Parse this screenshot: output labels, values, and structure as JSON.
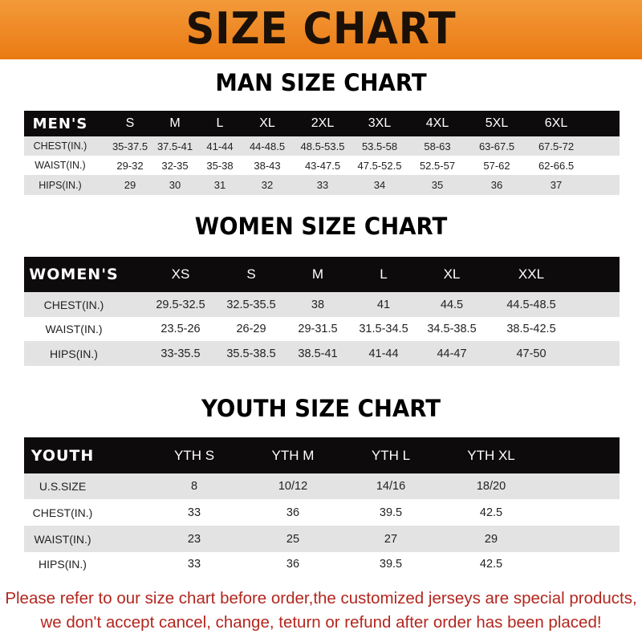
{
  "banner": {
    "title": "SIZE CHART",
    "color": "#ee8420"
  },
  "men": {
    "title": "MAN SIZE CHART",
    "header": [
      "MEN'S",
      "S",
      "M",
      "L",
      "XL",
      "2XL",
      "3XL",
      "4XL",
      "5XL",
      "6XL"
    ],
    "rows": [
      [
        "CHEST(IN.)",
        "35-37.5",
        "37.5-41",
        "41-44",
        "44-48.5",
        "48.5-53.5",
        "53.5-58",
        "58-63",
        "63-67.5",
        "67.5-72"
      ],
      [
        "WAIST(IN.)",
        "29-32",
        "32-35",
        "35-38",
        "38-43",
        "43-47.5",
        "47.5-52.5",
        "52.5-57",
        "57-62",
        "62-66.5"
      ],
      [
        "HIPS(IN.)",
        "29",
        "30",
        "31",
        "32",
        "33",
        "34",
        "35",
        "36",
        "37"
      ]
    ]
  },
  "women": {
    "title": "WOMEN SIZE CHART",
    "header": [
      "WOMEN'S",
      "XS",
      "S",
      "M",
      "L",
      "XL",
      "XXL"
    ],
    "rows": [
      [
        "CHEST(IN.)",
        "29.5-32.5",
        "32.5-35.5",
        "38",
        "41",
        "44.5",
        "44.5-48.5"
      ],
      [
        "WAIST(IN.)",
        "23.5-26",
        "26-29",
        "29-31.5",
        "31.5-34.5",
        "34.5-38.5",
        "38.5-42.5"
      ],
      [
        "HIPS(IN.)",
        "33-35.5",
        "35.5-38.5",
        "38.5-41",
        "41-44",
        "44-47",
        "47-50"
      ]
    ]
  },
  "youth": {
    "title": "YOUTH SIZE CHART",
    "header": [
      "YOUTH",
      "YTH S",
      "YTH M",
      "YTH L",
      "YTH XL"
    ],
    "rows": [
      [
        "U.S.SIZE",
        "8",
        "10/12",
        "14/16",
        "18/20"
      ],
      [
        "CHEST(IN.)",
        "33",
        "36",
        "39.5",
        "42.5"
      ],
      [
        "WAIST(IN.)",
        "23",
        "25",
        "27",
        "29"
      ],
      [
        "HIPS(IN.)",
        "33",
        "36",
        "39.5",
        "42.5"
      ]
    ]
  },
  "notice": {
    "line1": "Please refer to our size chart before order,the customized jerseys are special products,",
    "line2": "we don't accept cancel, change, teturn or refund after order has been placed!",
    "color": "#b3261e"
  }
}
